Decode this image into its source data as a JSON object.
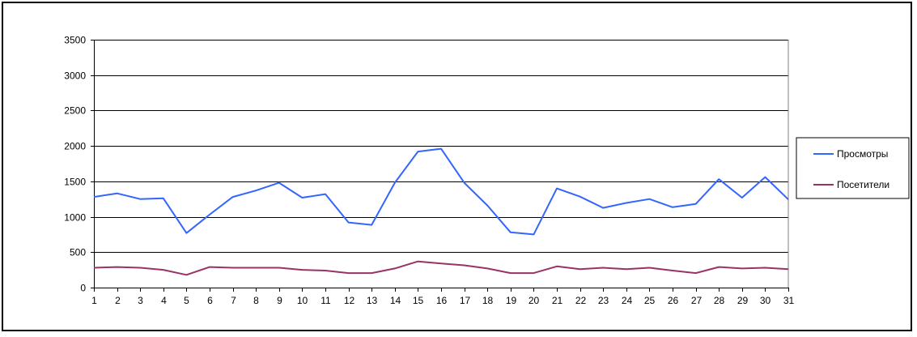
{
  "chart_data": {
    "type": "line",
    "title": "",
    "xlabel": "",
    "ylabel": "",
    "categories": [
      "1",
      "2",
      "3",
      "4",
      "5",
      "6",
      "7",
      "8",
      "9",
      "10",
      "11",
      "12",
      "13",
      "14",
      "15",
      "16",
      "17",
      "18",
      "19",
      "20",
      "21",
      "22",
      "23",
      "24",
      "25",
      "26",
      "27",
      "28",
      "29",
      "30",
      "31"
    ],
    "ylim": [
      0,
      3500
    ],
    "yticks": [
      "0",
      "500",
      "1000",
      "1500",
      "2000",
      "2500",
      "3000",
      "3500"
    ],
    "grid": true,
    "legend_position": "right",
    "series": [
      {
        "name": "Просмотры",
        "color": "#3366ff",
        "values": [
          1280,
          1330,
          1250,
          1260,
          770,
          1030,
          1280,
          1370,
          1480,
          1270,
          1320,
          920,
          885,
          1480,
          1920,
          1960,
          1480,
          1160,
          780,
          750,
          1400,
          1285,
          1125,
          1195,
          1250,
          1135,
          1180,
          1530,
          1270,
          1560,
          1245
        ]
      },
      {
        "name": "Посетители",
        "color": "#993366",
        "values": [
          280,
          290,
          280,
          250,
          180,
          290,
          280,
          280,
          280,
          250,
          240,
          205,
          205,
          270,
          370,
          340,
          315,
          270,
          205,
          205,
          300,
          260,
          280,
          260,
          280,
          240,
          205,
          290,
          270,
          280,
          260
        ]
      }
    ]
  }
}
